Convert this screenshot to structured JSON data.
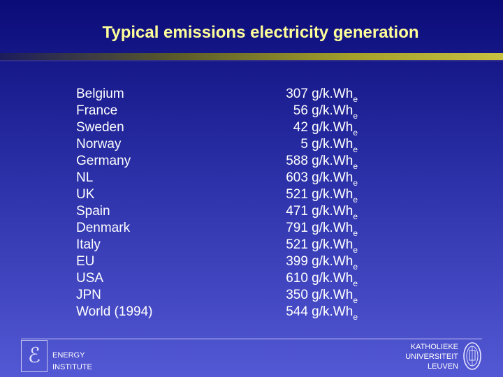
{
  "slide": {
    "title": "Typical emissions electricity generation"
  },
  "rows": [
    {
      "country": "Belgium",
      "value": "307 g/k.Wh",
      "sub": "e"
    },
    {
      "country": "France",
      "value": "56 g/k.Wh",
      "sub": "e"
    },
    {
      "country": "Sweden",
      "value": "42 g/k.Wh",
      "sub": "e"
    },
    {
      "country": "Norway",
      "value": "5 g/k.Wh",
      "sub": "e"
    },
    {
      "country": "Germany",
      "value": "588 g/k.Wh",
      "sub": "e"
    },
    {
      "country": "NL",
      "value": "603 g/k.Wh",
      "sub": "e"
    },
    {
      "country": "UK",
      "value": "521 g/k.Wh",
      "sub": "e"
    },
    {
      "country": "Spain",
      "value": "471 g/k.Wh",
      "sub": "e"
    },
    {
      "country": "Denmark",
      "value": "791 g/k.Wh",
      "sub": "e"
    },
    {
      "country": "Italy",
      "value": "521 g/k.Wh",
      "sub": "e"
    },
    {
      "country": "EU",
      "value": "399 g/k.Wh",
      "sub": "e"
    },
    {
      "country": "USA",
      "value": "610 g/k.Wh",
      "sub": "e"
    },
    {
      "country": "JPN",
      "value": "350 g/k.Wh",
      "sub": "e"
    },
    {
      "country": "World (1994)",
      "value": "544 g/k.Wh",
      "sub": "e"
    }
  ],
  "footer": {
    "logo_icon": "energy-logo-icon",
    "logo_glyph": "ℰ",
    "energy_line1": "ENERGY",
    "energy_line2": "INSTITUTE",
    "kul_line1": "KATHOLIEKE",
    "kul_line2": "UNIVERSITEIT",
    "kul_line3": "LEUVEN",
    "seal_icon": "university-seal-icon"
  },
  "colors": {
    "background_top": "#0b0b78",
    "background_bottom": "#5358d4",
    "title": "#ffff99",
    "text": "#ffffff"
  }
}
